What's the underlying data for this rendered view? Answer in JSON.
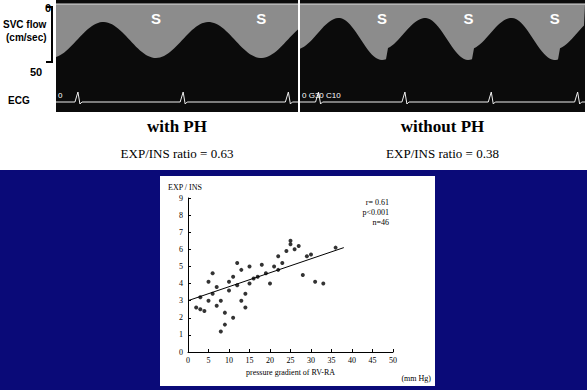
{
  "doppler": {
    "axis": {
      "title": "SVC flow",
      "unit": "(cm/sec)",
      "ticks": [
        0,
        50
      ]
    },
    "ecg_label": "ECG",
    "panels": [
      {
        "title": "with PH",
        "caption": "EXP/INS ratio = 0.63",
        "peaks": [
          "S",
          "S"
        ],
        "corner_text": "0"
      },
      {
        "title": "without PH",
        "caption": "EXP/INS ratio = 0.38",
        "peaks": [
          "S",
          "S",
          "S"
        ],
        "corner_text": "0 G30 C10"
      }
    ]
  },
  "chart_data": {
    "type": "scatter",
    "ylabel": "EXP / INS",
    "xlabel": "pressure gradient of RV-RA",
    "xunit": "(mm Hg)",
    "annotations": [
      "r= 0.61",
      "p<0.001",
      "n=46"
    ],
    "x": [
      2,
      3,
      3,
      4,
      5,
      5,
      6,
      6,
      7,
      7,
      8,
      8,
      9,
      9,
      10,
      10,
      11,
      11,
      12,
      12,
      13,
      13,
      14,
      14,
      15,
      15,
      16,
      17,
      18,
      19,
      20,
      21,
      22,
      22,
      23,
      24,
      25,
      25,
      26,
      27,
      28,
      29,
      30,
      31,
      33,
      36
    ],
    "values": [
      2.6,
      2.5,
      3.2,
      2.4,
      3.0,
      4.1,
      4.6,
      3.4,
      2.7,
      3.8,
      1.2,
      3.0,
      1.6,
      2.3,
      4.1,
      3.6,
      4.4,
      2.0,
      3.9,
      5.2,
      4.8,
      3.0,
      3.4,
      2.6,
      4.0,
      5.0,
      4.3,
      4.4,
      5.1,
      4.6,
      4.0,
      5.0,
      5.6,
      4.8,
      5.2,
      5.9,
      6.3,
      6.5,
      6.0,
      6.2,
      4.5,
      5.6,
      5.7,
      4.1,
      4.0,
      6.1
    ],
    "trend_line": {
      "x": [
        0,
        38
      ],
      "values": [
        3.0,
        6.1
      ]
    },
    "color": "#000000",
    "marker": "circle",
    "xlim": [
      0,
      50
    ],
    "xticks": [
      0,
      5,
      10,
      15,
      20,
      25,
      30,
      35,
      40,
      45,
      50
    ],
    "ylim": [
      0,
      9
    ],
    "yticks": [
      0,
      1,
      2,
      3,
      4,
      5,
      6,
      7,
      8,
      9
    ],
    "grid": false
  }
}
